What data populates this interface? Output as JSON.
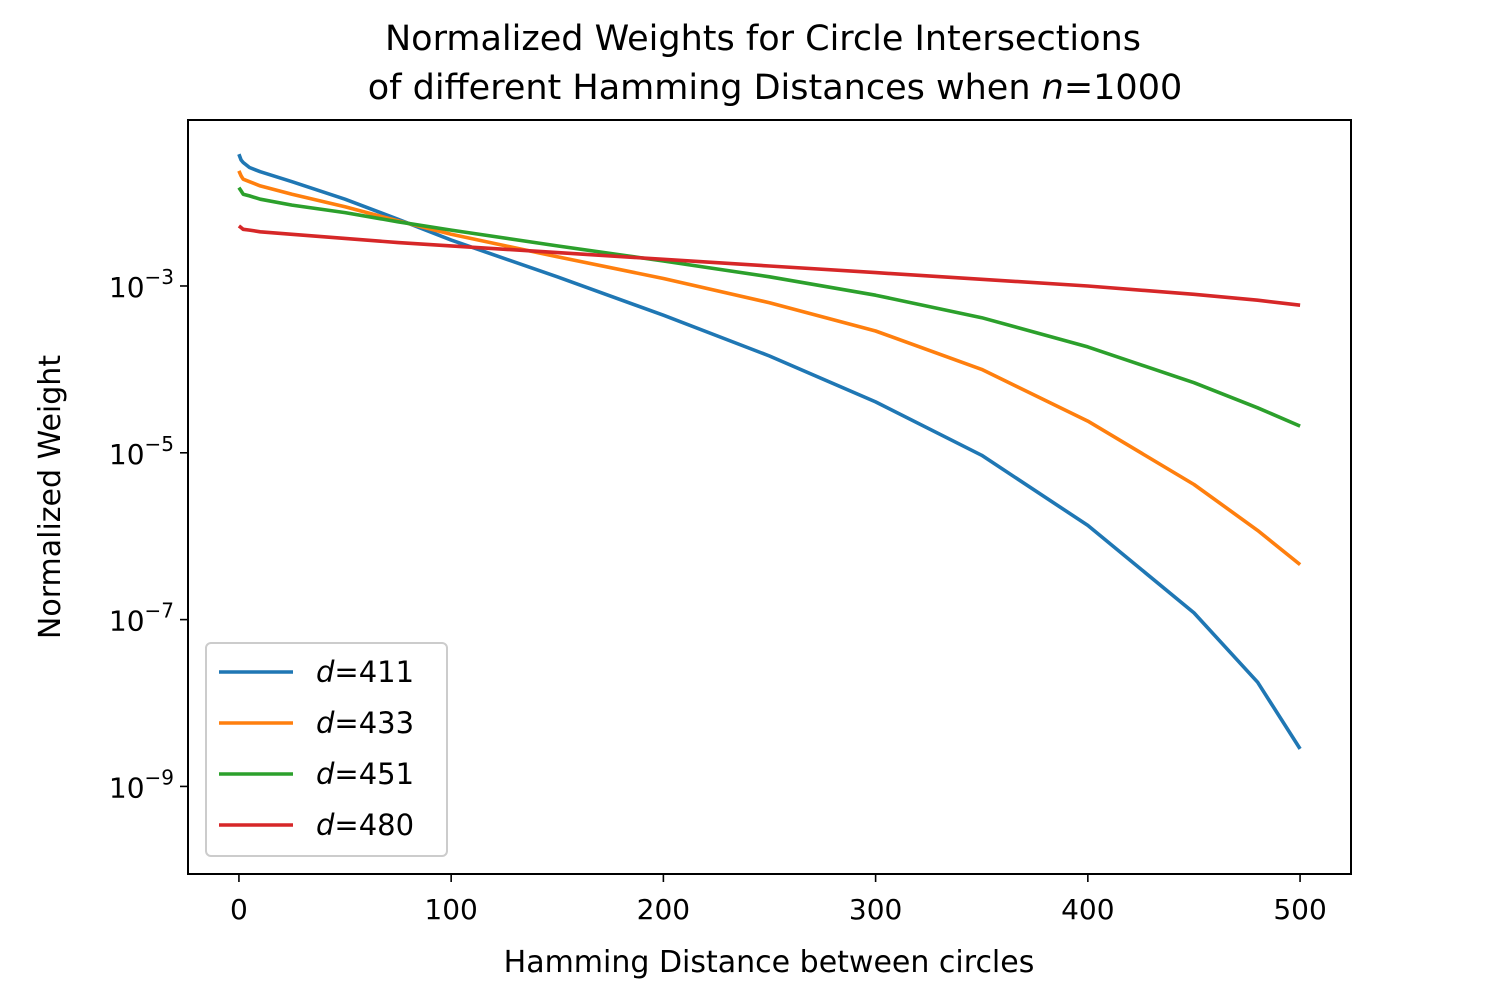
{
  "chart_data": {
    "type": "line",
    "title": {
      "line1": "Normalized Weights for Circle Intersections",
      "line2_prefix": "of different Hamming Distances when ",
      "line2_var": "n",
      "line2_suffix": "=1000"
    },
    "xlabel": "Hamming Distance between circles",
    "ylabel": "Normalized Weight",
    "xlim": [
      -24,
      524
    ],
    "ylim_log10": [
      -10.05,
      -1.01
    ],
    "y_scale": "log",
    "xticks": [
      {
        "value": 0,
        "label": "0"
      },
      {
        "value": 100,
        "label": "100"
      },
      {
        "value": 200,
        "label": "200"
      },
      {
        "value": 300,
        "label": "300"
      },
      {
        "value": 400,
        "label": "400"
      },
      {
        "value": 500,
        "label": "500"
      }
    ],
    "yticks": [
      {
        "exp": -3,
        "base": "10",
        "sup": "−3"
      },
      {
        "exp": -5,
        "base": "10",
        "sup": "−5"
      },
      {
        "exp": -7,
        "base": "10",
        "sup": "−7"
      },
      {
        "exp": -9,
        "base": "10",
        "sup": "−9"
      }
    ],
    "grid": false,
    "legend_position": "lower-left",
    "series": [
      {
        "name_var": "d",
        "name_value": "=411",
        "color": "#1f77b4",
        "x": [
          0,
          1,
          2,
          5,
          10,
          25,
          50,
          75,
          100,
          150,
          200,
          250,
          300,
          350,
          400,
          450,
          480,
          500
        ],
        "y_log10": [
          -1.42,
          -1.49,
          -1.52,
          -1.58,
          -1.63,
          -1.75,
          -1.96,
          -2.2,
          -2.45,
          -2.89,
          -3.35,
          -3.84,
          -4.39,
          -5.03,
          -5.87,
          -6.92,
          -7.75,
          -8.55
        ]
      },
      {
        "name_var": "d",
        "name_value": "=433",
        "color": "#ff7f0e",
        "x": [
          0,
          1,
          2,
          5,
          10,
          25,
          50,
          75,
          100,
          150,
          200,
          250,
          300,
          350,
          400,
          450,
          480,
          500
        ],
        "y_log10": [
          -1.62,
          -1.68,
          -1.72,
          -1.75,
          -1.8,
          -1.9,
          -2.05,
          -2.22,
          -2.38,
          -2.65,
          -2.91,
          -3.2,
          -3.54,
          -4.0,
          -4.62,
          -5.38,
          -5.93,
          -6.34
        ]
      },
      {
        "name_var": "d",
        "name_value": "=451",
        "color": "#2ca02c",
        "x": [
          0,
          1,
          2,
          5,
          10,
          25,
          50,
          75,
          100,
          150,
          200,
          250,
          300,
          350,
          400,
          450,
          480,
          500
        ],
        "y_log10": [
          -1.82,
          -1.86,
          -1.9,
          -1.92,
          -1.96,
          -2.03,
          -2.12,
          -2.23,
          -2.33,
          -2.52,
          -2.7,
          -2.89,
          -3.11,
          -3.38,
          -3.73,
          -4.16,
          -4.46,
          -4.68
        ]
      },
      {
        "name_var": "d",
        "name_value": "=480",
        "color": "#d62728",
        "x": [
          0,
          1,
          2,
          5,
          10,
          25,
          50,
          75,
          100,
          150,
          200,
          250,
          300,
          350,
          400,
          450,
          480,
          500
        ],
        "y_log10": [
          -2.28,
          -2.3,
          -2.32,
          -2.33,
          -2.35,
          -2.38,
          -2.43,
          -2.48,
          -2.52,
          -2.6,
          -2.68,
          -2.76,
          -2.84,
          -2.92,
          -3.0,
          -3.1,
          -3.17,
          -3.23
        ]
      }
    ]
  }
}
